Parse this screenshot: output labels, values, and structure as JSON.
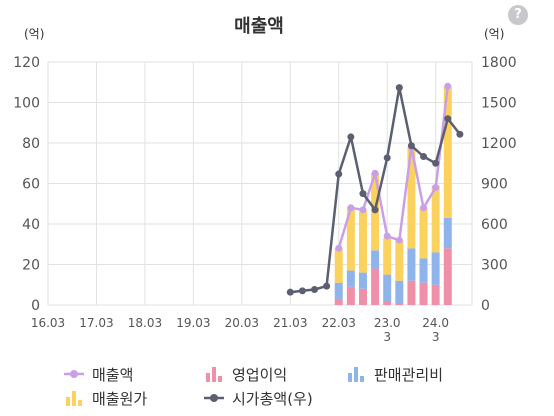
{
  "help_icon": "?",
  "chart_data": {
    "type": "bar",
    "title": "매출액",
    "y_left_unit": "(억)",
    "y_right_unit": "(억)",
    "y_left_ticks": [
      "0",
      "20",
      "40",
      "60",
      "80",
      "100",
      "120"
    ],
    "y_right_ticks": [
      "0",
      "300",
      "600",
      "900",
      "1200",
      "1500",
      "1800"
    ],
    "ylim_left": [
      0,
      120
    ],
    "ylim_right": [
      0,
      1800
    ],
    "x_tick_labels": [
      "16.03",
      "17.03",
      "18.03",
      "19.03",
      "20.03",
      "21.03",
      "22.03",
      "23.0\n3",
      "24.0\n3"
    ],
    "grid": true,
    "legend": [
      {
        "key": "revenue",
        "label": "매출액",
        "kind": "line",
        "color": "#c9a0e8"
      },
      {
        "key": "op",
        "label": "영업이익",
        "kind": "bar",
        "color": "#f08fa8"
      },
      {
        "key": "sga",
        "label": "판매관리비",
        "kind": "bar",
        "color": "#8fb4ec"
      },
      {
        "key": "cogs",
        "label": "매출원가",
        "kind": "bar",
        "color": "#fcd25e"
      },
      {
        "key": "mcap",
        "label": "시가총액(우)",
        "kind": "line",
        "color": "#5b5f70"
      }
    ],
    "quarterly_bars": [
      {
        "x": 22.0,
        "op": 3,
        "sga": 8,
        "cogs": 17,
        "revenue": 28
      },
      {
        "x": 22.25,
        "op": 9,
        "sga": 8,
        "cogs": 31,
        "revenue": 48
      },
      {
        "x": 22.5,
        "op": 8,
        "sga": 8,
        "cogs": 31,
        "revenue": 47
      },
      {
        "x": 22.75,
        "op": 18,
        "sga": 9,
        "cogs": 38,
        "revenue": 65
      },
      {
        "x": 23.0,
        "op": 2,
        "sga": 13,
        "cogs": 18,
        "revenue": 33
      },
      {
        "x": 23.25,
        "op": 1,
        "sga": 11,
        "cogs": 20,
        "revenue": 32
      },
      {
        "x": 23.5,
        "op": 12,
        "sga": 16,
        "cogs": 50,
        "revenue": 78
      },
      {
        "x": 23.75,
        "op": 11,
        "sga": 12,
        "cogs": 25,
        "revenue": 48
      },
      {
        "x": 24.0,
        "op": 10,
        "sga": 16,
        "cogs": 33,
        "revenue": 59
      },
      {
        "x": 24.25,
        "op": 28,
        "sga": 15,
        "cogs": 65,
        "revenue": 108
      }
    ],
    "revenue_line": [
      {
        "x": 22.0,
        "y": 28
      },
      {
        "x": 22.25,
        "y": 48
      },
      {
        "x": 22.5,
        "y": 47
      },
      {
        "x": 22.75,
        "y": 65
      },
      {
        "x": 23.0,
        "y": 34
      },
      {
        "x": 23.25,
        "y": 32
      },
      {
        "x": 23.5,
        "y": 78
      },
      {
        "x": 23.75,
        "y": 48
      },
      {
        "x": 24.0,
        "y": 58
      },
      {
        "x": 24.25,
        "y": 108
      }
    ],
    "market_cap_line": [
      {
        "x": 21.0,
        "y": 95
      },
      {
        "x": 21.25,
        "y": 105
      },
      {
        "x": 21.5,
        "y": 115
      },
      {
        "x": 21.75,
        "y": 140
      },
      {
        "x": 22.0,
        "y": 970
      },
      {
        "x": 22.25,
        "y": 1245
      },
      {
        "x": 22.5,
        "y": 825
      },
      {
        "x": 22.75,
        "y": 705
      },
      {
        "x": 23.0,
        "y": 1090
      },
      {
        "x": 23.25,
        "y": 1610
      },
      {
        "x": 23.5,
        "y": 1180
      },
      {
        "x": 23.75,
        "y": 1100
      },
      {
        "x": 24.0,
        "y": 1050
      },
      {
        "x": 24.25,
        "y": 1380
      },
      {
        "x": 24.5,
        "y": 1265
      }
    ]
  }
}
